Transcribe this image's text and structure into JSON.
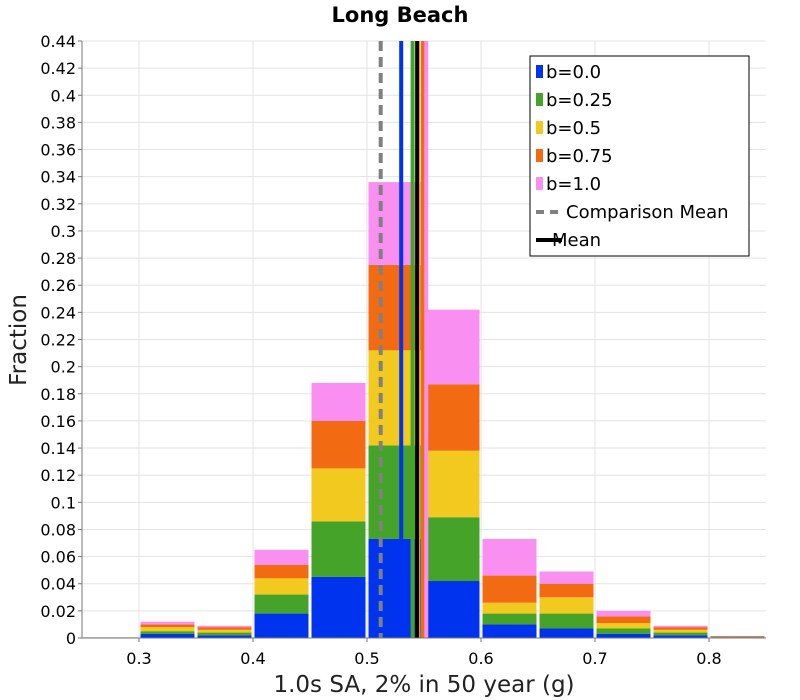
{
  "chart_data": {
    "type": "bar",
    "stacked": true,
    "title": "Long Beach",
    "xlabel": "1.0s SA, 2% in 50 year (g)",
    "ylabel": "Fraction",
    "xlim": [
      0.25,
      0.85
    ],
    "ylim": [
      0,
      0.44
    ],
    "x_ticks": [
      "0.3",
      "0.4",
      "0.5",
      "0.6",
      "0.7",
      "0.8"
    ],
    "y_ticks": [
      "0",
      "0.02",
      "0.04",
      "0.06",
      "0.08",
      "0.1",
      "0.12",
      "0.14",
      "0.16",
      "0.18",
      "0.2",
      "0.22",
      "0.24",
      "0.26",
      "0.28",
      "0.3",
      "0.32",
      "0.34",
      "0.36",
      "0.38",
      "0.4",
      "0.42",
      "0.44"
    ],
    "grid": true,
    "legend_position": "top-right",
    "bin_width": 0.05,
    "bins": [
      0.25,
      0.3,
      0.35,
      0.4,
      0.45,
      0.5,
      0.55,
      0.6,
      0.65,
      0.7,
      0.75,
      0.8
    ],
    "series": [
      {
        "name": "b=0.0",
        "color": "#0033ee",
        "values": [
          0.0,
          0.003,
          0.002,
          0.018,
          0.045,
          0.073,
          0.042,
          0.01,
          0.007,
          0.003,
          0.002,
          0.0
        ]
      },
      {
        "name": "b=0.25",
        "color": "#44a328",
        "values": [
          0.0,
          0.002,
          0.002,
          0.014,
          0.041,
          0.069,
          0.047,
          0.008,
          0.011,
          0.004,
          0.002,
          0.0
        ]
      },
      {
        "name": "b=0.5",
        "color": "#f2c91f",
        "values": [
          0.0,
          0.003,
          0.002,
          0.012,
          0.039,
          0.07,
          0.049,
          0.008,
          0.012,
          0.004,
          0.002,
          0.0
        ]
      },
      {
        "name": "b=0.75",
        "color": "#f26b12",
        "values": [
          0.0,
          0.002,
          0.002,
          0.01,
          0.035,
          0.063,
          0.049,
          0.02,
          0.01,
          0.005,
          0.002,
          0.0
        ]
      },
      {
        "name": "b=1.0",
        "color": "#f98ff0",
        "values": [
          0.0,
          0.002,
          0.001,
          0.011,
          0.028,
          0.061,
          0.055,
          0.027,
          0.009,
          0.004,
          0.001,
          0.0
        ]
      }
    ],
    "outline_bars": [
      {
        "x": 0.25,
        "value": 0.0005,
        "color": "#999999"
      },
      {
        "x": 0.8,
        "value": 0.0015,
        "color": "#b58a6a"
      }
    ],
    "vertical_lines": [
      {
        "name": "Comparison Mean",
        "x": 0.512,
        "color": "#808080",
        "style": "dashed"
      },
      {
        "name": "b=0.0 mean",
        "x": 0.53,
        "color": "#0033ee",
        "style": "solid"
      },
      {
        "name": "b=0.25 mean",
        "x": 0.54,
        "color": "#44a328",
        "style": "solid"
      },
      {
        "name": "b=0.5 mean",
        "x": 0.545,
        "color": "#f2c91f",
        "style": "solid"
      },
      {
        "name": "b=0.75 mean",
        "x": 0.549,
        "color": "#f26b12",
        "style": "solid"
      },
      {
        "name": "b=1.0 mean",
        "x": 0.552,
        "color": "#f98ff0",
        "style": "solid"
      },
      {
        "name": "Mean",
        "x": 0.544,
        "color": "#000000",
        "style": "solid"
      }
    ],
    "legend": [
      {
        "label": "b=0.0",
        "color": "#0033ee",
        "kind": "box"
      },
      {
        "label": "b=0.25",
        "color": "#44a328",
        "kind": "box"
      },
      {
        "label": "b=0.5",
        "color": "#f2c91f",
        "kind": "box"
      },
      {
        "label": "b=0.75",
        "color": "#f26b12",
        "kind": "box"
      },
      {
        "label": "b=1.0",
        "color": "#f98ff0",
        "kind": "box"
      },
      {
        "label": "Comparison Mean",
        "color": "#808080",
        "kind": "dashed"
      },
      {
        "label": "Mean",
        "color": "#000000",
        "kind": "solid"
      }
    ]
  }
}
